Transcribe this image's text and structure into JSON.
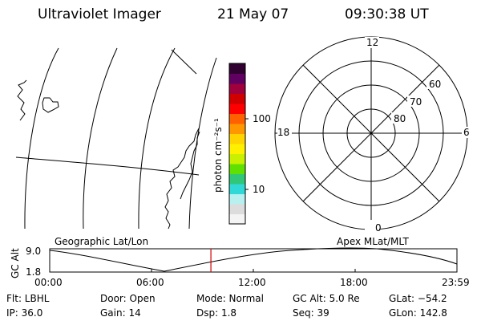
{
  "header": {
    "title": "Ultraviolet Imager",
    "date": "21 May 07",
    "time": "09:30:38 UT"
  },
  "colorbar": {
    "unit_label": "photon cm⁻²s⁻¹",
    "ticks": [
      "100",
      "10"
    ],
    "scale": "log",
    "colors": [
      "#f4f4f4",
      "#dcdcdc",
      "#b8f0f0",
      "#30d8d8",
      "#30c878",
      "#60e000",
      "#c8f000",
      "#fff000",
      "#ffd400",
      "#ff9800",
      "#ff6000",
      "#ff0000",
      "#d00000",
      "#a0003c",
      "#600060",
      "#300030"
    ]
  },
  "polar_plot": {
    "mlt_labels": [
      "12",
      "6",
      "0",
      "18"
    ],
    "lat_labels": [
      "60",
      "70",
      "80"
    ]
  },
  "timeline": {
    "left_caption": "Geographic Lat/Lon",
    "right_caption": "Apex MLat/MLT",
    "y_axis_label": "GC Alt",
    "y_ticks": [
      "9.0",
      "1.8"
    ],
    "x_ticks": [
      "00:00",
      "06:00",
      "12:00",
      "18:00",
      "23:59"
    ],
    "current_time_marker_hours": 9.5,
    "marker_color": "#d00000"
  },
  "footer": {
    "filter": "Flt: LBHL",
    "door": "Door: Open",
    "mode": "Mode: Normal",
    "gc_alt": "GC Alt: 5.0 Re",
    "glat": "GLat: −54.2",
    "ip": "IP: 36.0",
    "gain": "Gain: 14",
    "dsp": "Dsp:    1.8",
    "seq": "Seq: 39",
    "glon": "GLon: 142.8"
  }
}
